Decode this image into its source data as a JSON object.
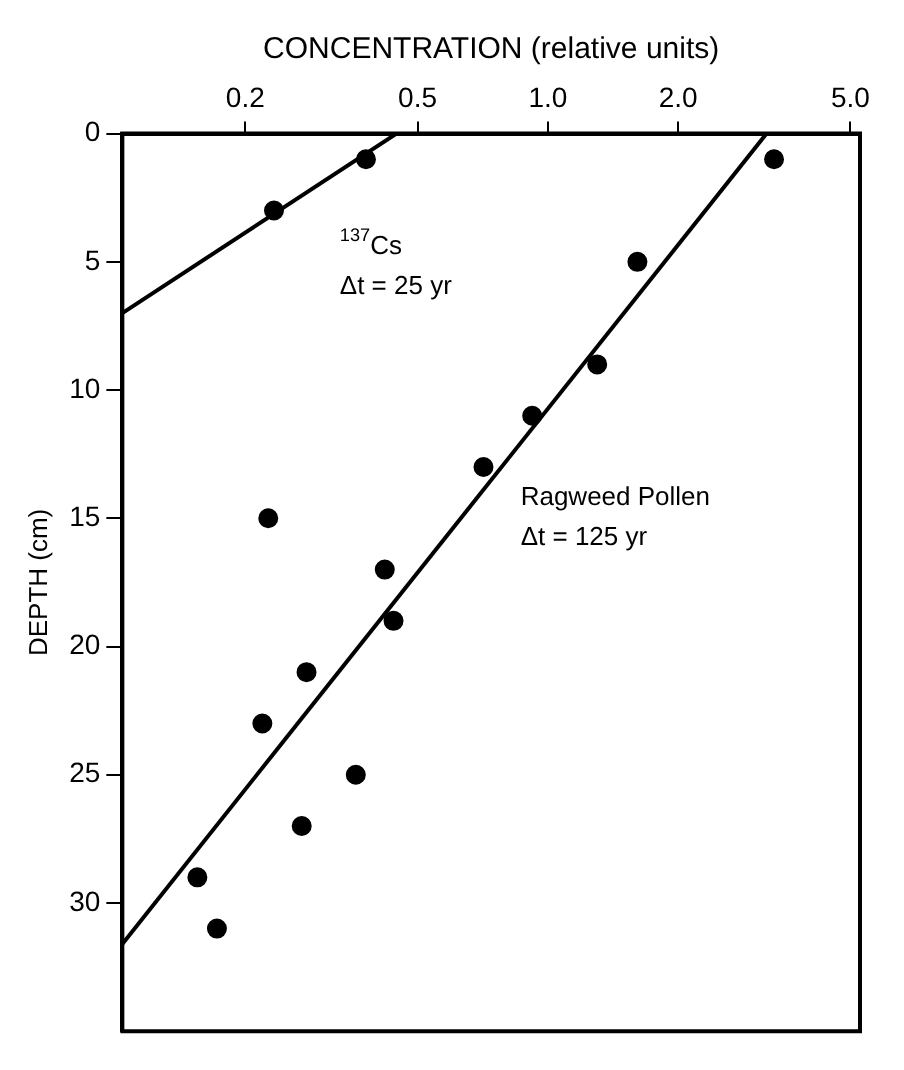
{
  "chart_data": {
    "type": "scatter",
    "xlabel": "CONCENTRATION (relative units)",
    "ylabel": "DEPTH (cm)",
    "log": "x",
    "xlim": [
      0.104,
      5.26
    ],
    "xticks": [
      0.2,
      0.5,
      {
        "value": 1,
        "label": "1.0"
      },
      {
        "value": 2,
        "label": "2.0"
      },
      {
        "value": 5,
        "label": "5.0"
      }
    ],
    "ylim": [
      35,
      0
    ],
    "yticks": [
      0,
      5,
      10,
      15,
      20,
      25,
      30
    ],
    "grid": false,
    "legend": false,
    "marker": "circle",
    "series": [
      {
        "color": "#000000",
        "x": [
          0.38,
          0.233
        ],
        "values": [
          1,
          3
        ]
      },
      {
        "color": "#000000",
        "x": [
          3.33,
          1.61,
          1.3,
          0.92,
          0.71,
          0.226,
          0.42,
          0.44,
          0.277,
          0.219,
          0.36,
          0.27,
          0.155,
          0.172
        ],
        "values": [
          1,
          5,
          9,
          11,
          13,
          15,
          17,
          19,
          21,
          23,
          25,
          27,
          29,
          31
        ]
      },
      {
        "type": "line",
        "name": "$^{137}$Cs",
        "color": "#000000",
        "line_style": "solid",
        "marker": "none",
        "x": [
          0.447,
          0.104
        ],
        "values": [
          0,
          7
        ]
      },
      {
        "type": "line",
        "name": "Ragweed Pollen",
        "color": "#000000",
        "line_style": "solid",
        "marker": "none",
        "x": [
          3.2,
          0.104
        ],
        "values": [
          0,
          31.6
        ]
      }
    ],
    "annotations": [
      "Δt = 25 yr",
      "Δt = 125 yr"
    ]
  }
}
